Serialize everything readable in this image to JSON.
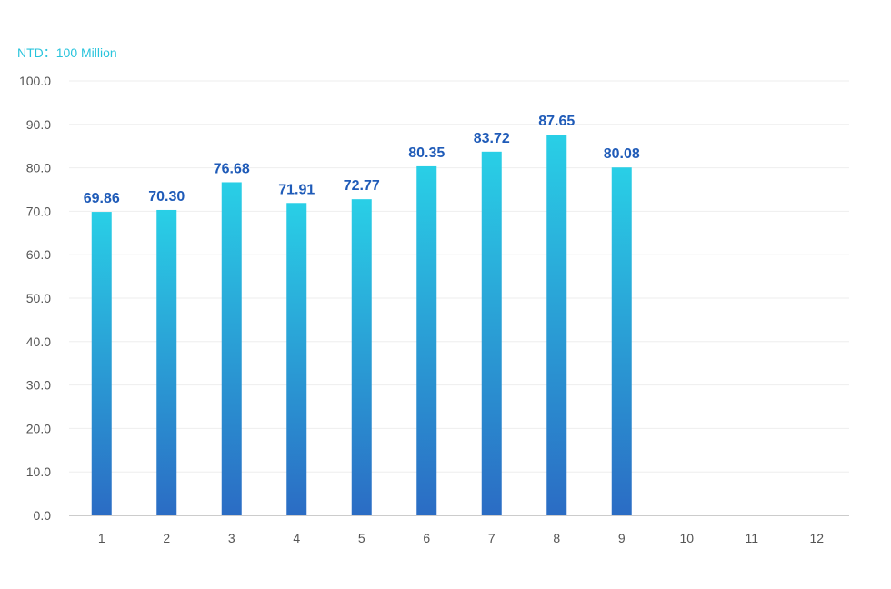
{
  "chart_data": {
    "type": "bar",
    "unit_label": "NTD：100 Million",
    "categories": [
      "1",
      "2",
      "3",
      "4",
      "5",
      "6",
      "7",
      "8",
      "9",
      "10",
      "11",
      "12"
    ],
    "values": [
      69.86,
      70.3,
      76.68,
      71.91,
      72.77,
      80.35,
      83.72,
      87.65,
      80.08,
      null,
      null,
      null
    ],
    "data_labels": [
      "69.86",
      "70.30",
      "76.68",
      "71.91",
      "72.77",
      "80.35",
      "83.72",
      "87.65",
      "80.08",
      "",
      "",
      ""
    ],
    "y_ticks": [
      "0.0",
      "10.0",
      "20.0",
      "30.0",
      "40.0",
      "50.0",
      "60.0",
      "70.0",
      "80.0",
      "90.0",
      "100.0"
    ],
    "ylim": [
      0,
      100
    ],
    "grid": true,
    "colors": {
      "bar_top": "#29cfe6",
      "bar_bottom": "#2b6cc4",
      "data_label": "#1f5bb8",
      "unit_label": "#29c4dc",
      "grid": "#eeeeee",
      "axis": "#cccccc",
      "tick_text": "#555555"
    }
  }
}
